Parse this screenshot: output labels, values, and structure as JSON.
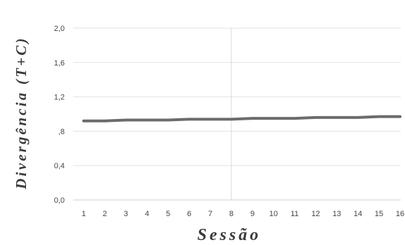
{
  "chart_data": {
    "type": "line",
    "title": "",
    "xlabel": "Sessão",
    "ylabel": "Divergência (T+C)",
    "x": [
      1,
      2,
      3,
      4,
      5,
      6,
      7,
      8,
      9,
      10,
      11,
      12,
      13,
      14,
      15,
      16
    ],
    "x_tick_labels": [
      "1",
      "2",
      "3",
      "4",
      "5",
      "6",
      "7",
      "8",
      "9",
      "10",
      "11",
      "12",
      "13",
      "14",
      "15",
      "16"
    ],
    "y_tick_labels": [
      "2,0",
      "1,6",
      "1,2",
      ",8",
      "0,4",
      "0,0"
    ],
    "y_ticks": [
      2.0,
      1.6,
      1.2,
      0.8,
      0.4,
      0.0
    ],
    "ylim": [
      0,
      2.0
    ],
    "grid": "horizontal",
    "vertical_reference_line_at_x": 8,
    "series": [
      {
        "values": [
          0.92,
          0.92,
          0.93,
          0.93,
          0.93,
          0.94,
          0.94,
          0.94,
          0.95,
          0.95,
          0.95,
          0.96,
          0.96,
          0.96,
          0.97,
          0.97
        ]
      }
    ],
    "colors": {
      "line": "#6b6b6b",
      "grid": "#e2e2e2",
      "reference_line": "#d9d9d9"
    }
  }
}
